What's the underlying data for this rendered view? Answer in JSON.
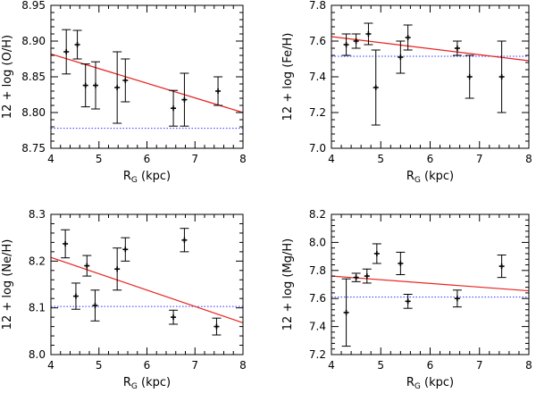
{
  "chart_data": [
    {
      "type": "scatter",
      "xlabel": "R",
      "xlabel_sub": "G",
      "xlabel_unit": " (kpc)",
      "ylabel": "12 + log (O/H)",
      "xlim": [
        4,
        8
      ],
      "ylim": [
        8.75,
        8.95
      ],
      "xticks": [
        4,
        5,
        6,
        7,
        8
      ],
      "yticks": [
        8.75,
        8.8,
        8.85,
        8.9,
        8.95
      ],
      "xtick_labels": [
        "4",
        "5",
        "6",
        "7",
        "8"
      ],
      "ytick_labels": [
        "8.75",
        "8.80",
        "8.85",
        "8.90",
        "8.95"
      ],
      "points": [
        {
          "x": 4.32,
          "y": 8.885,
          "err": 0.031
        },
        {
          "x": 4.55,
          "y": 8.895,
          "err": 0.02
        },
        {
          "x": 4.72,
          "y": 8.838,
          "err": 0.03
        },
        {
          "x": 4.93,
          "y": 8.838,
          "err": 0.033
        },
        {
          "x": 5.38,
          "y": 8.835,
          "err": 0.05
        },
        {
          "x": 5.55,
          "y": 8.845,
          "err": 0.03
        },
        {
          "x": 6.55,
          "y": 8.806,
          "err": 0.025
        },
        {
          "x": 6.78,
          "y": 8.818,
          "err": 0.037
        },
        {
          "x": 7.48,
          "y": 8.83,
          "err": 0.02
        }
      ],
      "fit_line": {
        "x": [
          4,
          8
        ],
        "y": [
          8.882,
          8.8
        ]
      },
      "reference_line": 8.778
    },
    {
      "type": "scatter",
      "xlabel": "R",
      "xlabel_sub": "G",
      "xlabel_unit": " (kpc)",
      "ylabel": "12 + log (Fe/H)",
      "xlim": [
        4,
        8
      ],
      "ylim": [
        7.0,
        7.8
      ],
      "xticks": [
        4,
        5,
        6,
        7,
        8
      ],
      "yticks": [
        7.0,
        7.2,
        7.4,
        7.6,
        7.8
      ],
      "xtick_labels": [
        "4",
        "5",
        "6",
        "7",
        "8"
      ],
      "ytick_labels": [
        "7.0",
        "7.2",
        "7.4",
        "7.6",
        "7.8"
      ],
      "points": [
        {
          "x": 4.3,
          "y": 7.58,
          "err": 0.06
        },
        {
          "x": 4.5,
          "y": 7.6,
          "err": 0.04
        },
        {
          "x": 4.75,
          "y": 7.64,
          "err": 0.06
        },
        {
          "x": 4.9,
          "y": 7.34,
          "err": 0.21
        },
        {
          "x": 5.4,
          "y": 7.51,
          "err": 0.09
        },
        {
          "x": 5.55,
          "y": 7.62,
          "err": 0.07
        },
        {
          "x": 6.55,
          "y": 7.56,
          "err": 0.04
        },
        {
          "x": 6.8,
          "y": 7.4,
          "err": 0.12
        },
        {
          "x": 7.45,
          "y": 7.4,
          "err": 0.2
        }
      ],
      "fit_line": {
        "x": [
          4,
          8
        ],
        "y": [
          7.625,
          7.49
        ]
      },
      "reference_line": 7.515
    },
    {
      "type": "scatter",
      "xlabel": "R",
      "xlabel_sub": "G",
      "xlabel_unit": " (kpc)",
      "ylabel": "12 + log (Ne/H)",
      "xlim": [
        4,
        8
      ],
      "ylim": [
        8.0,
        8.3
      ],
      "xticks": [
        4,
        5,
        6,
        7,
        8
      ],
      "yticks": [
        8.0,
        8.1,
        8.2,
        8.3
      ],
      "xtick_labels": [
        "4",
        "5",
        "6",
        "7",
        "8"
      ],
      "ytick_labels": [
        "8.0",
        "8.1",
        "8.2",
        "8.3"
      ],
      "points": [
        {
          "x": 4.3,
          "y": 8.237,
          "err": 0.03
        },
        {
          "x": 4.52,
          "y": 8.125,
          "err": 0.028
        },
        {
          "x": 4.75,
          "y": 8.19,
          "err": 0.022
        },
        {
          "x": 4.92,
          "y": 8.105,
          "err": 0.033
        },
        {
          "x": 5.38,
          "y": 8.183,
          "err": 0.045
        },
        {
          "x": 5.55,
          "y": 8.225,
          "err": 0.025
        },
        {
          "x": 6.55,
          "y": 8.08,
          "err": 0.015
        },
        {
          "x": 6.78,
          "y": 8.245,
          "err": 0.025
        },
        {
          "x": 7.45,
          "y": 8.06,
          "err": 0.018
        }
      ],
      "fit_line": {
        "x": [
          4,
          8
        ],
        "y": [
          8.208,
          8.068
        ]
      },
      "reference_line": 8.103
    },
    {
      "type": "scatter",
      "xlabel": "R",
      "xlabel_sub": "G",
      "xlabel_unit": " (kpc)",
      "ylabel": "12 + log (Mg/H)",
      "xlim": [
        4,
        8
      ],
      "ylim": [
        7.2,
        8.2
      ],
      "xticks": [
        4,
        5,
        6,
        7,
        8
      ],
      "yticks": [
        7.2,
        7.4,
        7.6,
        7.8,
        8.0,
        8.2
      ],
      "xtick_labels": [
        "4",
        "5",
        "6",
        "7",
        "8"
      ],
      "ytick_labels": [
        "7.2",
        "7.4",
        "7.6",
        "7.8",
        "8.0",
        "8.2"
      ],
      "points": [
        {
          "x": 4.3,
          "y": 7.5,
          "err": 0.24
        },
        {
          "x": 4.5,
          "y": 7.75,
          "err": 0.03
        },
        {
          "x": 4.72,
          "y": 7.76,
          "err": 0.05
        },
        {
          "x": 4.92,
          "y": 7.92,
          "err": 0.07
        },
        {
          "x": 5.4,
          "y": 7.85,
          "err": 0.08
        },
        {
          "x": 5.55,
          "y": 7.58,
          "err": 0.05
        },
        {
          "x": 6.55,
          "y": 7.6,
          "err": 0.06
        },
        {
          "x": 7.45,
          "y": 7.83,
          "err": 0.08
        }
      ],
      "fit_line": {
        "x": [
          4,
          8
        ],
        "y": [
          7.76,
          7.655
        ]
      },
      "reference_line": 7.61
    }
  ],
  "colors": {
    "fit_line": "#e8221f",
    "reference_line": "#3333ff",
    "points": "#000000",
    "axes": "#000000"
  }
}
